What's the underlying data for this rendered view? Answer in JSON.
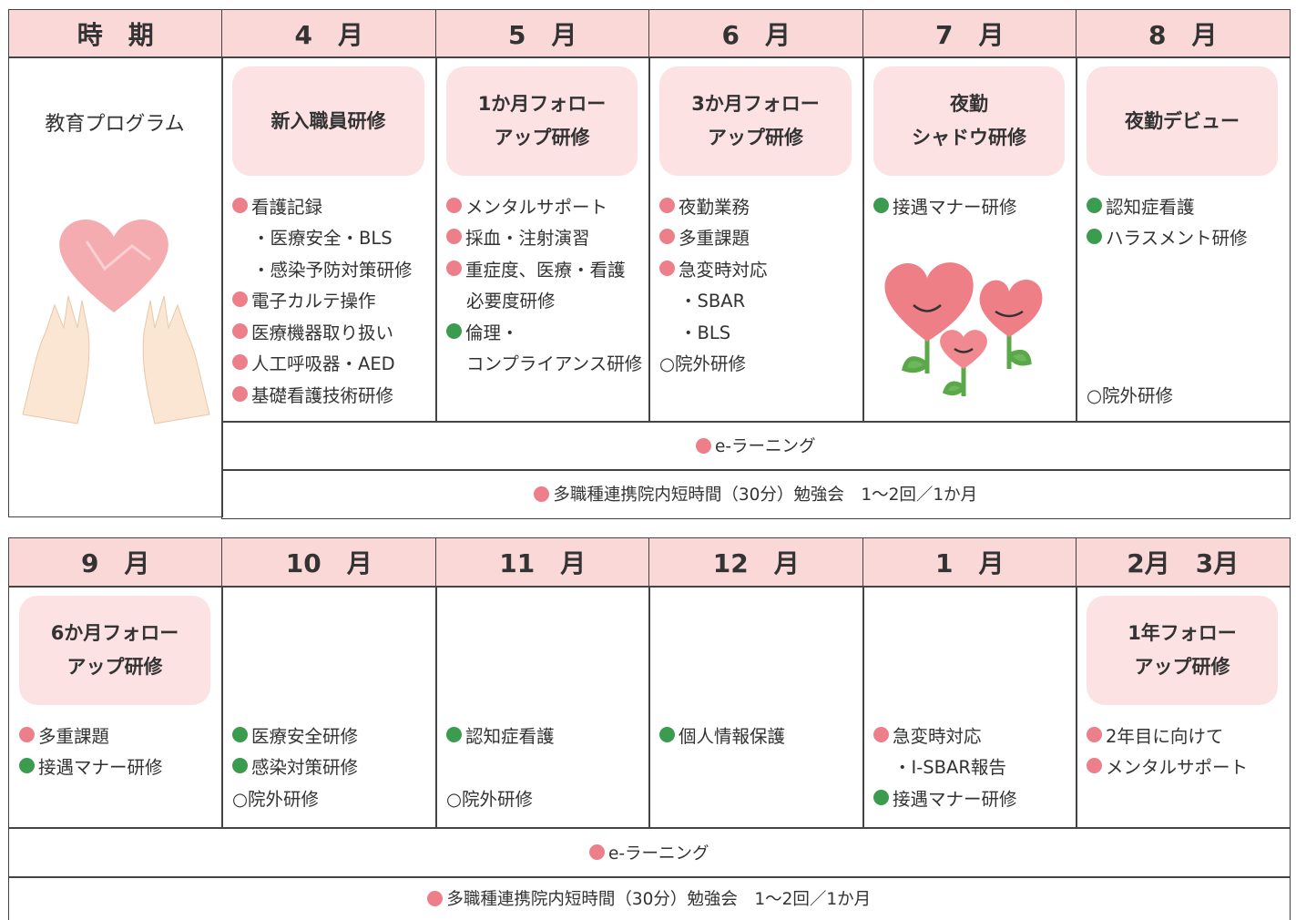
{
  "top": {
    "header": [
      "時　期",
      "4　月",
      "5　月",
      "6　月",
      "7　月",
      "8　月"
    ],
    "program_label": "教育プログラム",
    "columns": [
      {
        "title": "新入職員研修",
        "items": [
          {
            "text": "看護記録",
            "color": "#ec7f8a"
          },
          {
            "text": "・医療安全・BLS"
          },
          {
            "text": "・感染予防対策研修"
          },
          {
            "text": "電子カルテ操作",
            "color": "#ec7f8a"
          },
          {
            "text": "医療機器取り扱い",
            "color": "#ec7f8a"
          },
          {
            "text": "人工呼吸器・AED",
            "color": "#ec7f8a"
          },
          {
            "text": "基礎看護技術研修",
            "color": "#ec7f8a"
          }
        ]
      },
      {
        "title": "1か月フォロー\nアップ研修",
        "items": [
          {
            "text": "メンタルサポート",
            "color": "#ec7f8a"
          },
          {
            "text": "採血・注射演習",
            "color": "#ec7f8a"
          },
          {
            "text": "重症度、医療・看護",
            "color": "#ec7f8a"
          },
          {
            "text": "必要度研修"
          },
          {
            "text": "倫理・",
            "color": "#3b9b4e"
          },
          {
            "text": "コンプライアンス研修"
          }
        ]
      },
      {
        "title": "3か月フォロー\nアップ研修",
        "items": [
          {
            "text": "夜勤業務",
            "color": "#ec7f8a"
          },
          {
            "text": "多重課題",
            "color": "#ec7f8a"
          },
          {
            "text": "急変時対応",
            "color": "#ec7f8a"
          },
          {
            "text": "・SBAR"
          },
          {
            "text": "・BLS"
          },
          {
            "text": "○院外研修"
          }
        ]
      },
      {
        "title": "夜勤\nシャドウ研修",
        "items": [
          {
            "text": "接遇マナー研修",
            "color": "#3b9b4e"
          }
        ]
      },
      {
        "title": "夜勤デビュー",
        "items": [
          {
            "text": "認知症看護",
            "color": "#3b9b4e"
          },
          {
            "text": "ハラスメント研修",
            "color": "#3b9b4e"
          },
          {
            "text": "○院外研修"
          }
        ]
      }
    ],
    "elearning": {
      "text": "e-ラーニング",
      "color": "#ec7f8a"
    },
    "study": {
      "text": "多職種連携院内短時間（30分）勉強会　1〜2回／1か月",
      "color": "#ec7f8a"
    }
  },
  "bottom": {
    "header": [
      "9　月",
      "10　月",
      "11　月",
      "12　月",
      "1　月",
      "2月　3月"
    ],
    "columns": [
      {
        "title": "6か月フォロー\nアップ研修",
        "items": [
          {
            "text": "多重課題",
            "color": "#ec7f8a"
          },
          {
            "text": "接遇マナー研修",
            "color": "#3b9b4e"
          }
        ]
      },
      {
        "items": [
          {
            "text": "医療安全研修",
            "color": "#3b9b4e"
          },
          {
            "text": "感染対策研修",
            "color": "#3b9b4e"
          },
          {
            "text": "○院外研修"
          }
        ]
      },
      {
        "items": [
          {
            "text": "認知症看護",
            "color": "#3b9b4e"
          },
          {
            "text": "○院外研修"
          }
        ]
      },
      {
        "items": [
          {
            "text": "個人情報保護",
            "color": "#3b9b4e"
          }
        ]
      },
      {
        "items": [
          {
            "text": "急変時対応",
            "color": "#ec7f8a"
          },
          {
            "text": "・I-SBAR報告"
          },
          {
            "text": "接遇マナー研修",
            "color": "#3b9b4e"
          }
        ]
      },
      {
        "title": "1年フォロー\nアップ研修",
        "items": [
          {
            "text": "2年目に向けて",
            "color": "#ec7f8a"
          },
          {
            "text": "メンタルサポート",
            "color": "#ec7f8a"
          }
        ]
      }
    ],
    "elearning": {
      "text": "e-ラーニング",
      "color": "#ec7f8a"
    },
    "study": {
      "text": "多職種連携院内短時間（30分）勉強会　1〜2回／1か月",
      "color": "#ec7f8a"
    }
  }
}
